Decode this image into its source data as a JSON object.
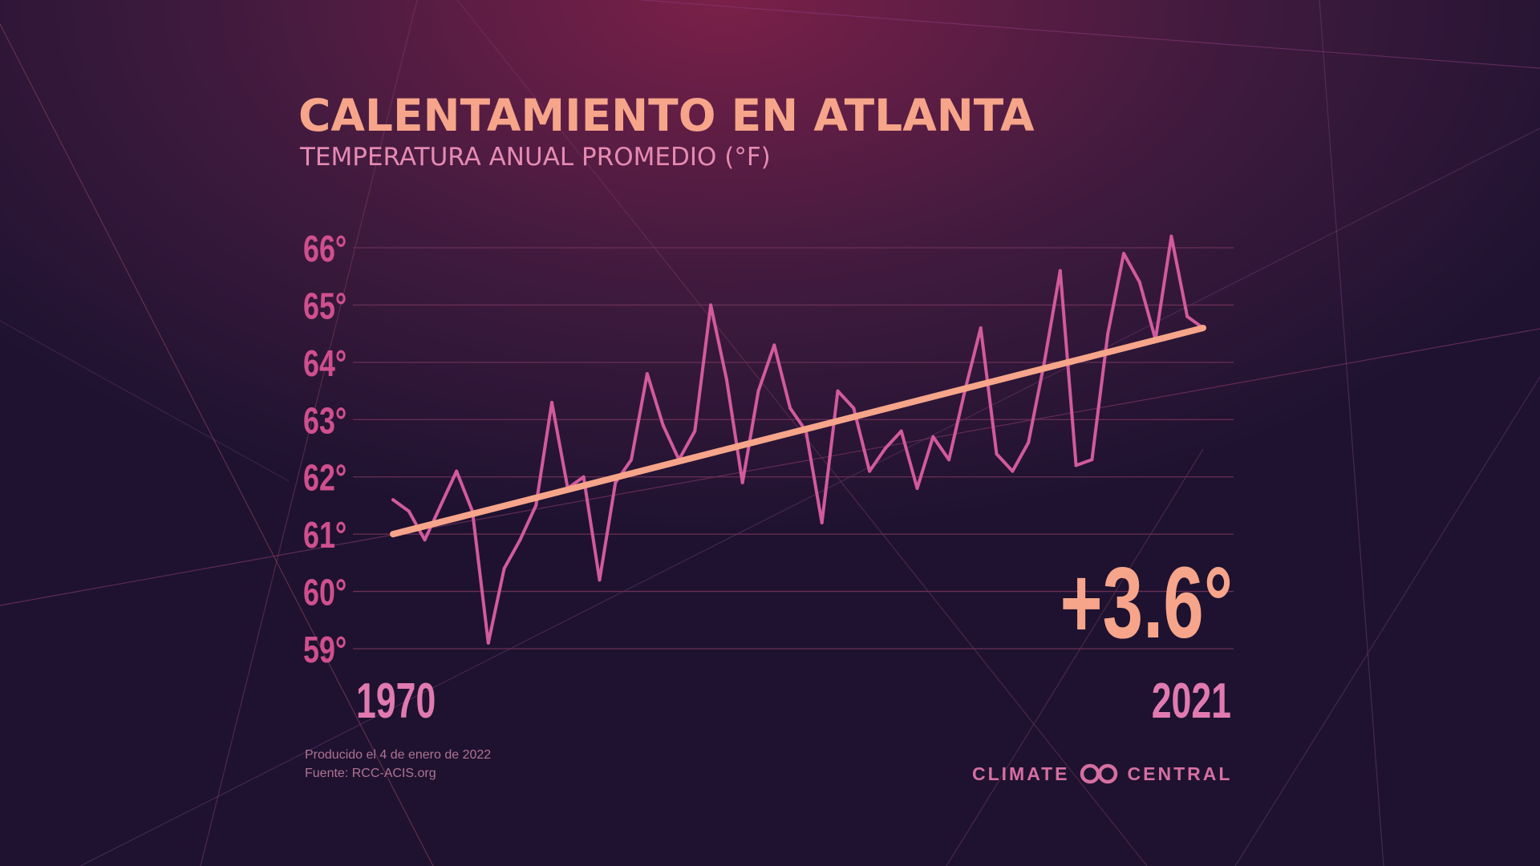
{
  "header": {
    "title": "CALENTAMIENTO EN ATLANTA",
    "subtitle": "TEMPERATURA ANUAL PROMEDIO (°F)"
  },
  "footer": {
    "produced": "Producido el 4 de enero de 2022",
    "source": "Fuente: RCC-ACIS.org"
  },
  "brand": {
    "left": "CLIMATE",
    "right": "CENTRAL",
    "icon": "infinity-loop-icon"
  },
  "chart_data": {
    "type": "line",
    "title": "CALENTAMIENTO EN ATLANTA",
    "subtitle": "TEMPERATURA ANUAL PROMEDIO (°F)",
    "xlabel": "",
    "ylabel": "",
    "x_tick_labels": [
      "1970",
      "2021"
    ],
    "y_ticks": [
      59,
      60,
      61,
      62,
      63,
      64,
      65,
      66
    ],
    "y_tick_labels": [
      "59°",
      "60°",
      "61°",
      "62°",
      "63°",
      "64°",
      "65°",
      "66°"
    ],
    "ylim": [
      59,
      66
    ],
    "xlim": [
      1970,
      2021
    ],
    "grid": "horizontal",
    "annotation": "+3.6°",
    "series": [
      {
        "x": [
          1970,
          1971,
          1972,
          1973,
          1974,
          1975,
          1976,
          1977,
          1978,
          1979,
          1980,
          1981,
          1982,
          1983,
          1984,
          1985,
          1986,
          1987,
          1988,
          1989,
          1990,
          1991,
          1992,
          1993,
          1994,
          1995,
          1996,
          1997,
          1998,
          1999,
          2000,
          2001,
          2002,
          2003,
          2004,
          2005,
          2006,
          2007,
          2008,
          2009,
          2010,
          2011,
          2012,
          2013,
          2014,
          2015,
          2016,
          2017,
          2018,
          2019,
          2020,
          2021
        ],
        "values": [
          61.6,
          61.4,
          60.9,
          61.5,
          62.1,
          61.4,
          59.1,
          60.4,
          60.9,
          61.5,
          63.3,
          61.8,
          62.0,
          60.2,
          61.9,
          62.3,
          63.8,
          62.9,
          62.3,
          62.8,
          65.0,
          63.7,
          61.9,
          63.5,
          64.3,
          63.2,
          62.8,
          61.2,
          63.5,
          63.2,
          62.1,
          62.5,
          62.8,
          61.8,
          62.7,
          62.3,
          63.5,
          64.6,
          62.4,
          62.1,
          62.6,
          64.0,
          65.6,
          62.2,
          62.3,
          64.5,
          65.9,
          65.4,
          64.4,
          66.2,
          64.8,
          64.6
        ],
        "color": "#d25a9d"
      },
      {
        "type": "trend",
        "x": [
          1970,
          2021
        ],
        "values": [
          61.0,
          64.6
        ],
        "color": "#f6a58a"
      }
    ],
    "colors": {
      "tick": "#d04f8f",
      "year_label": "#e07ab0",
      "annotation": "#f6a58a",
      "grid": "#6a2f56"
    }
  }
}
